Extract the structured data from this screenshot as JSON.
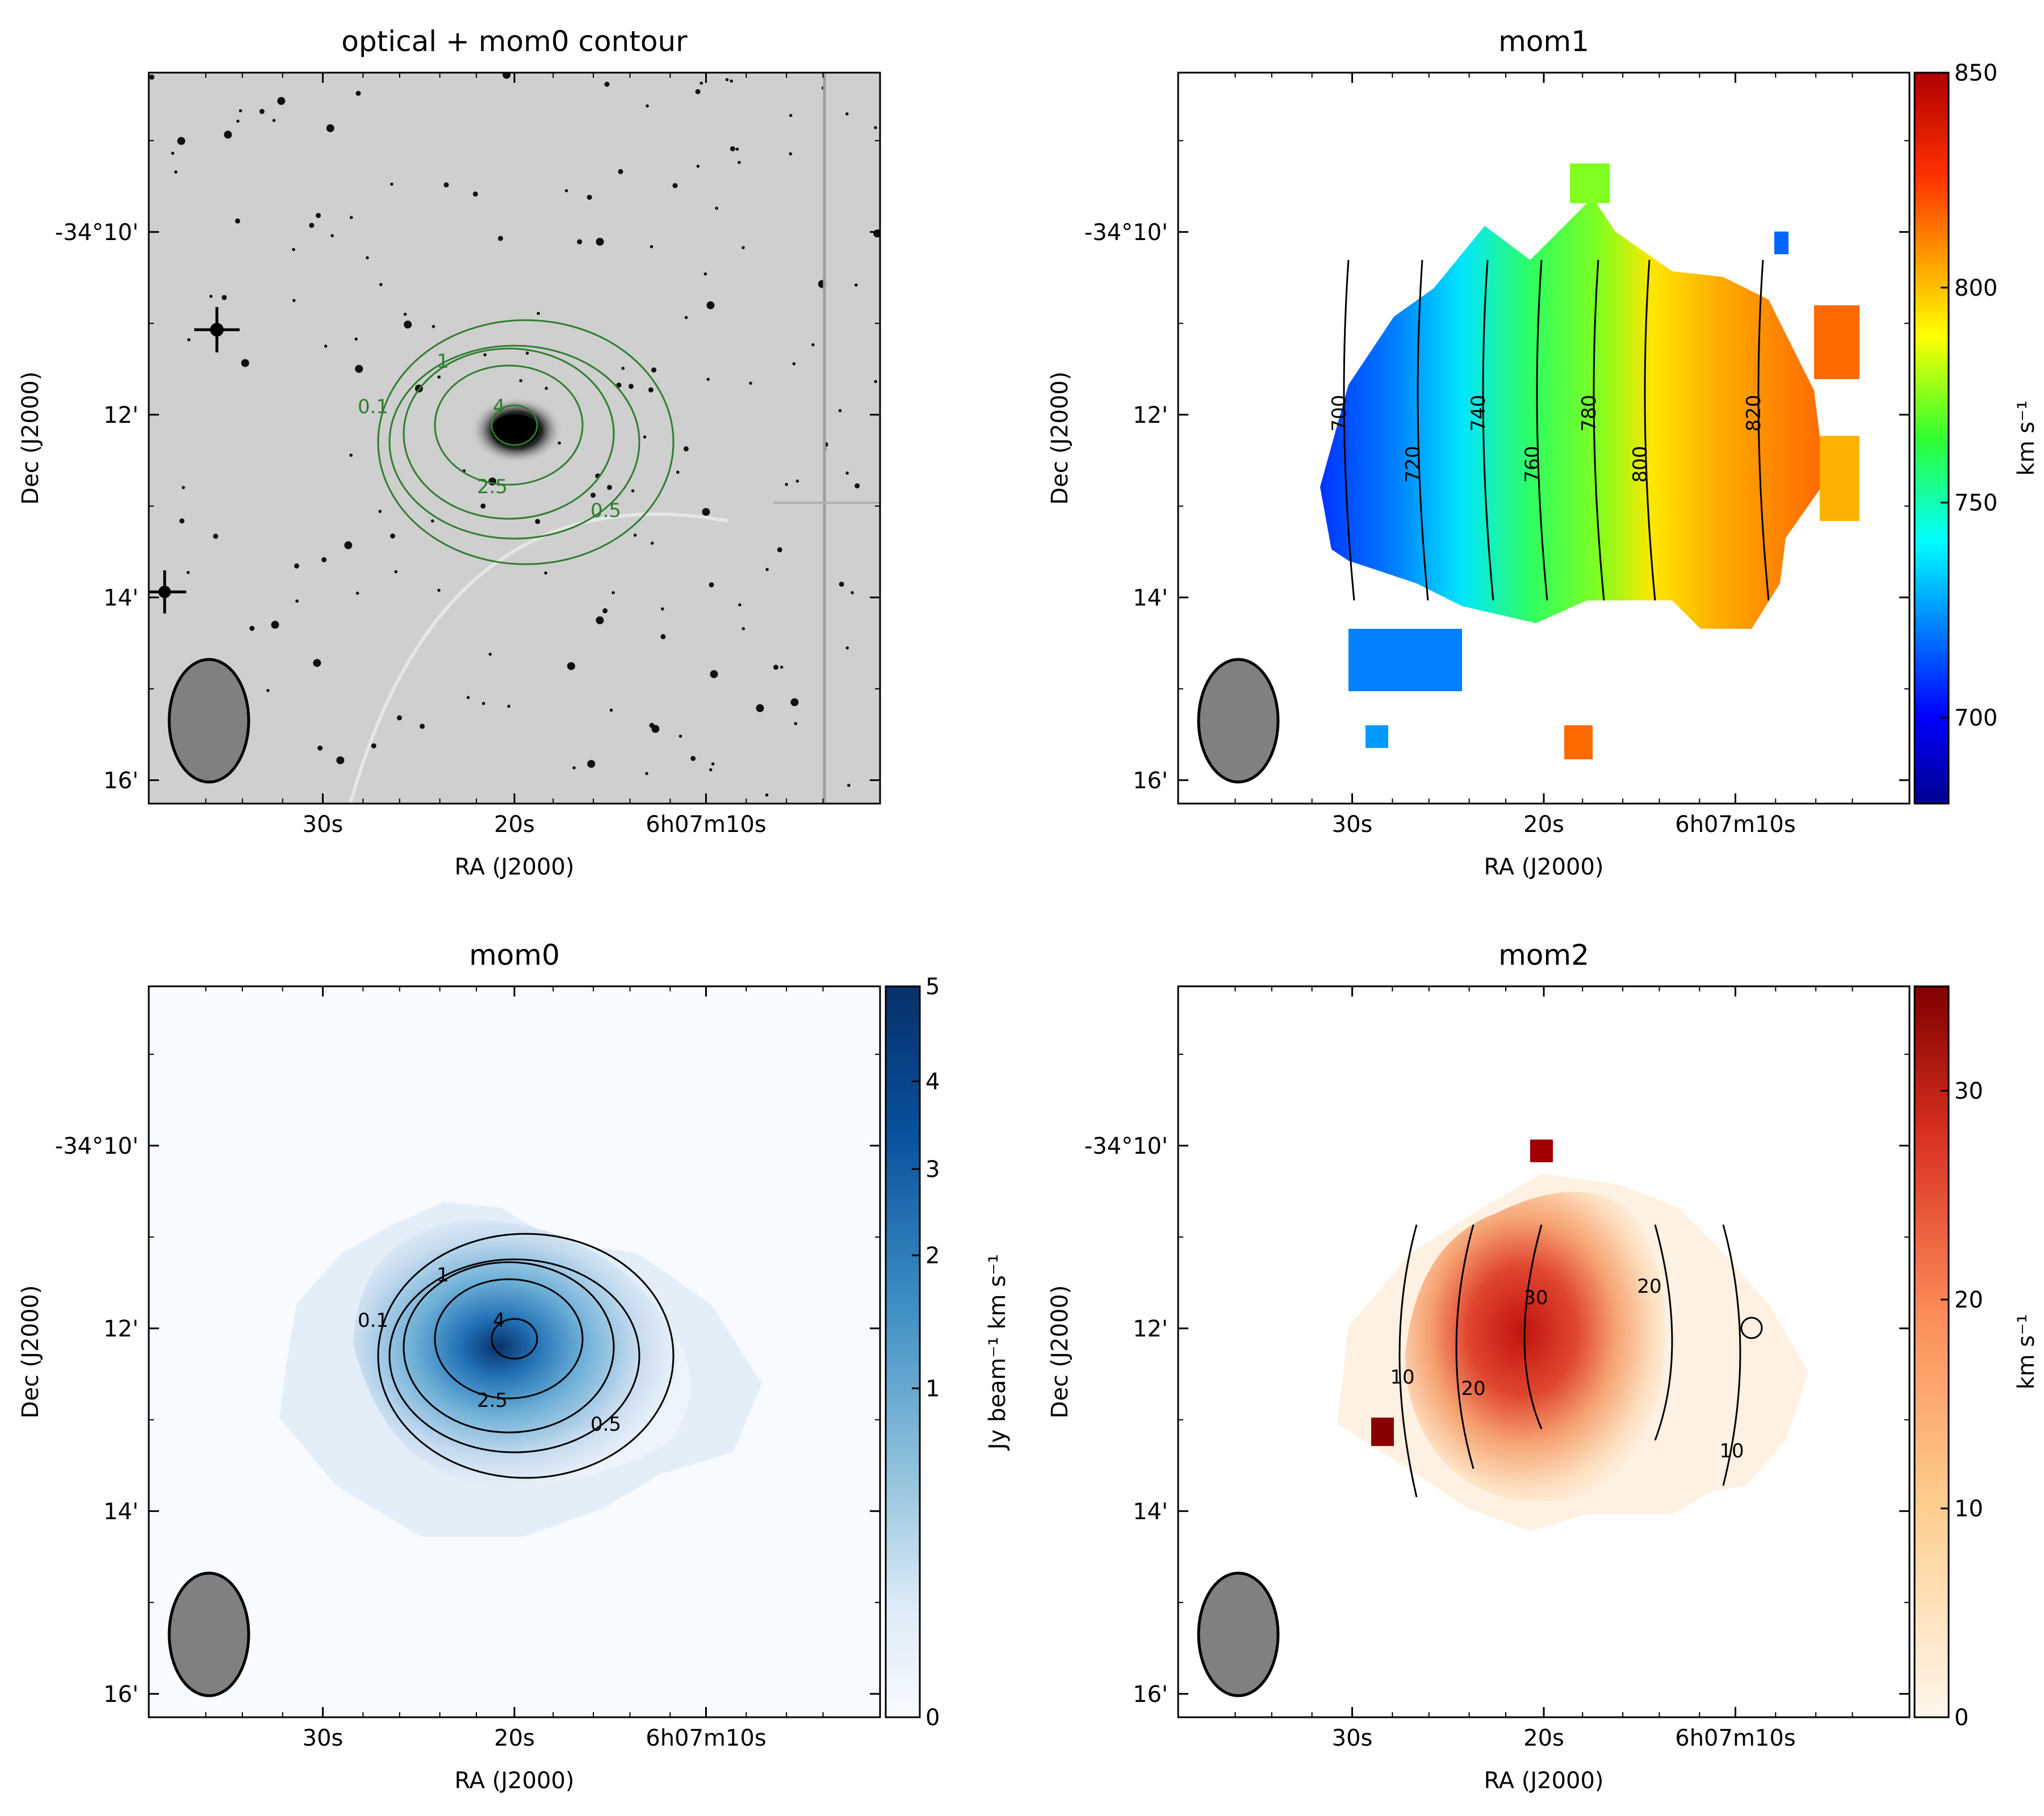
{
  "chart_data": [
    {
      "type": "heatmap",
      "id": "optical",
      "title": "optical + mom0 contour",
      "xlabel": "RA (J2000)",
      "ylabel": "Dec (J2000)",
      "xticks": [
        "30s",
        "20s",
        "6h07m10s"
      ],
      "yticks": [
        "-34°10'",
        "12'",
        "14'",
        "16'"
      ],
      "colormap": "gray_r",
      "contour_color": "#2e7d2e",
      "contour_levels": [
        "0.1",
        "0.5",
        "1",
        "2.5",
        "4"
      ],
      "beam": "beam-ellipse"
    },
    {
      "type": "heatmap",
      "id": "mom1",
      "title": "mom1",
      "xlabel": "RA (J2000)",
      "ylabel": "Dec (J2000)",
      "xticks": [
        "30s",
        "20s",
        "6h07m10s"
      ],
      "yticks": [
        "-34°10'",
        "12'",
        "14'",
        "16'"
      ],
      "colormap": "jet",
      "colorbar_range": [
        680,
        850
      ],
      "colorbar_ticks": [
        "700",
        "750",
        "800",
        "850"
      ],
      "colorbar_label": "km s⁻¹",
      "contour_color": "#000000",
      "contour_levels": [
        "700",
        "720",
        "740",
        "760",
        "780",
        "800",
        "820"
      ],
      "beam": "beam-ellipse"
    },
    {
      "type": "heatmap",
      "id": "mom0",
      "title": "mom0",
      "xlabel": "RA (J2000)",
      "ylabel": "Dec (J2000)",
      "xticks": [
        "30s",
        "20s",
        "6h07m10s"
      ],
      "yticks": [
        "-34°10'",
        "12'",
        "14'",
        "16'"
      ],
      "colormap": "Blues",
      "colorbar_range": [
        0,
        5
      ],
      "colorbar_ticks": [
        "0",
        "1",
        "2",
        "3",
        "4",
        "5"
      ],
      "colorbar_label": "Jy beam⁻¹ km s⁻¹",
      "contour_color": "#000000",
      "contour_levels": [
        "0.1",
        "0.5",
        "1",
        "2.5",
        "4"
      ],
      "beam": "beam-ellipse"
    },
    {
      "type": "heatmap",
      "id": "mom2",
      "title": "mom2",
      "xlabel": "RA (J2000)",
      "ylabel": "Dec (J2000)",
      "xticks": [
        "30s",
        "20s",
        "6h07m10s"
      ],
      "yticks": [
        "-34°10'",
        "12'",
        "14'",
        "16'"
      ],
      "colormap": "OrRd",
      "colorbar_range": [
        0,
        35
      ],
      "colorbar_ticks": [
        "0",
        "10",
        "20",
        "30"
      ],
      "colorbar_label": "km s⁻¹",
      "contour_color": "#000000",
      "contour_levels": [
        "10",
        "20",
        "30"
      ],
      "beam": "beam-ellipse"
    }
  ]
}
